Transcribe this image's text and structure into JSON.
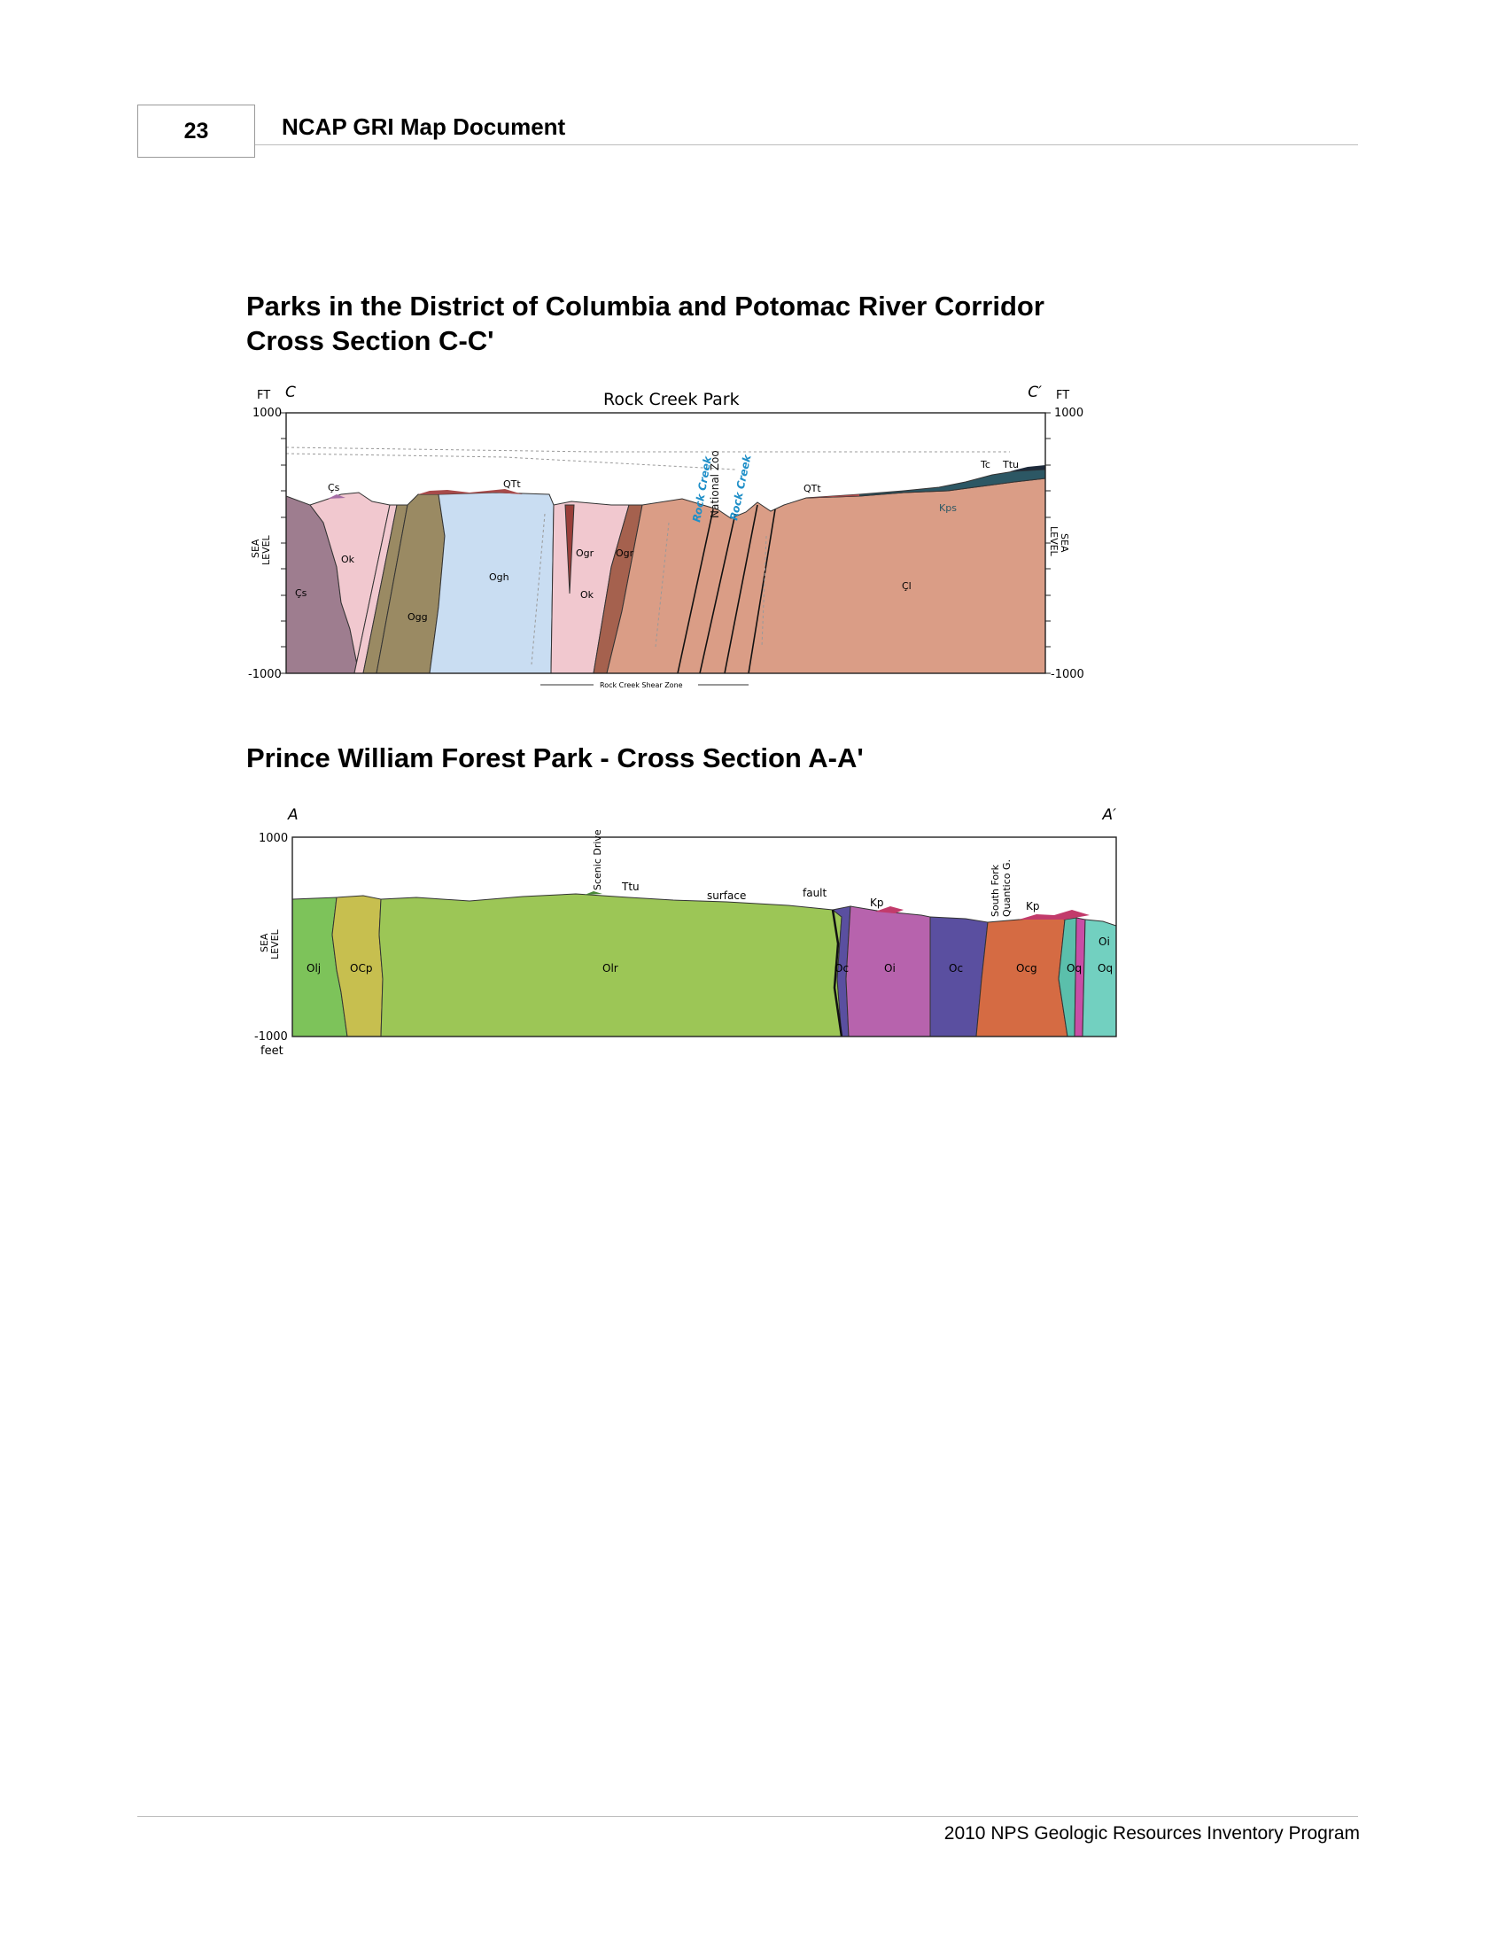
{
  "header": {
    "page_number": "23",
    "doc_title": "NCAP GRI Map Document"
  },
  "section1": {
    "title_line1": "Parks in the District of Columbia and Potomac River Corridor",
    "title_line2": "Cross Section C-C'"
  },
  "fig1": {
    "label_left": "C",
    "label_right": "C′",
    "title": "Rock Creek Park",
    "ft_left": "FT",
    "ft_right": "FT",
    "top_left": "1000",
    "top_right": "1000",
    "bottom_left": "-1000",
    "bottom_right": "-1000",
    "sea": "SEA",
    "level": "LEVEL",
    "shear_zone": "Rock Creek Shear Zone",
    "place_labels": [
      "Rock Creek",
      "National Zoo",
      "Rock Creek"
    ],
    "units": {
      "cs_top": "Çs",
      "cs_left": "Çs",
      "ok_left": "Ok",
      "ogg": "Ogg",
      "ogh": "Ogh",
      "qtt_left": "QTt",
      "ogr_left": "Ogr",
      "ogr_right": "Ogr",
      "ok_mid": "Ok",
      "qtt_right": "QTt",
      "cl": "Çl",
      "tc": "Tc",
      "ttu": "Ttu",
      "kps": "Kps"
    }
  },
  "section2": {
    "title": "Prince William Forest Park - Cross Section A-A'"
  },
  "fig2": {
    "label_left": "A",
    "label_right": "A′",
    "top_left": "1000",
    "bottom_left": "-1000",
    "feet": "feet",
    "sea": "SEA",
    "level": "LEVEL",
    "scenic_drive": "Scenic Drive",
    "ttu": "Ttu",
    "surface": "surface",
    "fault": "fault",
    "kp_left": "Kp",
    "south_fork": "South Fork",
    "quantico": "Quantico G.",
    "kp_right": "Kp",
    "units": {
      "olj": "Olj",
      "ocp": "OCp",
      "olr": "Olr",
      "oc_left": "Oc",
      "oi_mid": "Oi",
      "oc_right": "Oc",
      "ocg": "Ocg",
      "oq_left": "Oq",
      "oq_right": "Oq",
      "oi_right": "Oi"
    }
  },
  "footer": {
    "text": "2010 NPS Geologic Resources Inventory Program"
  }
}
